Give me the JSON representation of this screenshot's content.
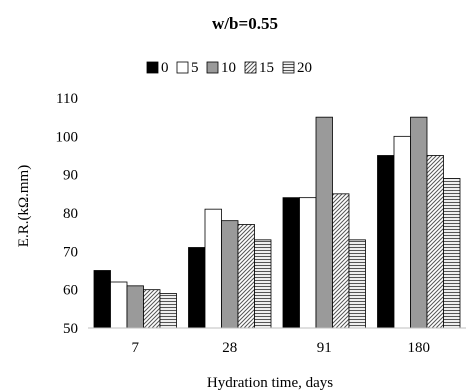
{
  "chart_data": {
    "type": "bar",
    "title": "w/b=0.55",
    "xlabel": "Hydration time, days",
    "ylabel": "E.R.(kΩ.mm)",
    "ylim": [
      50,
      110
    ],
    "ytick_step": 10,
    "grid": false,
    "legend_position": "top",
    "categories": [
      "7",
      "28",
      "91",
      "180"
    ],
    "series": [
      {
        "name": "0",
        "values": [
          65,
          71,
          84,
          95
        ],
        "fill": "#000000",
        "pattern": "solid"
      },
      {
        "name": "5",
        "values": [
          62,
          81,
          84,
          100
        ],
        "fill": "#ffffff",
        "pattern": "solid"
      },
      {
        "name": "10",
        "values": [
          61,
          78,
          105,
          105
        ],
        "fill": "#9a9a9a",
        "pattern": "solid"
      },
      {
        "name": "15",
        "values": [
          60,
          77,
          85,
          95
        ],
        "fill": "#ffffff",
        "pattern": "diagonal"
      },
      {
        "name": "20",
        "values": [
          59,
          73,
          73,
          89
        ],
        "fill": "#ffffff",
        "pattern": "horizontal"
      }
    ]
  }
}
